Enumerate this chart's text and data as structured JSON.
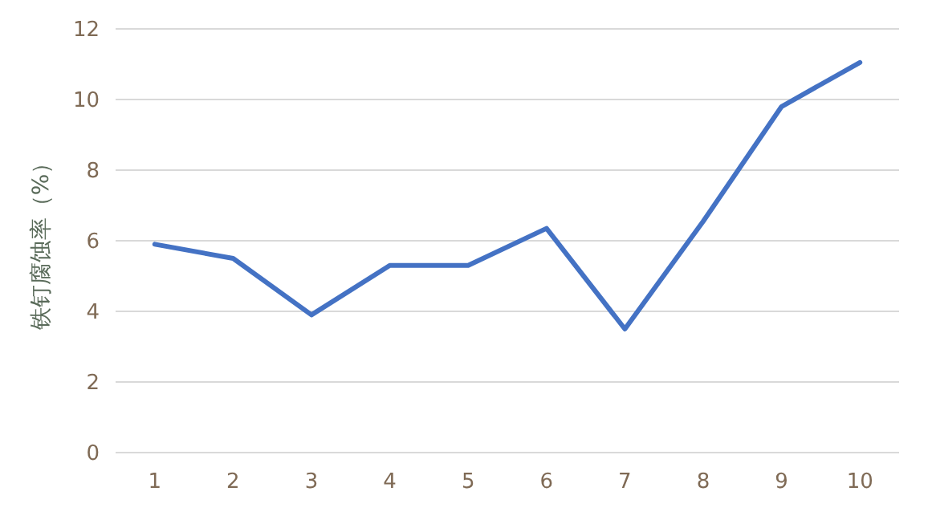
{
  "chart_data": {
    "type": "line",
    "ylabel": "铁钉腐蚀率（%）",
    "categories": [
      "1",
      "2",
      "3",
      "4",
      "5",
      "6",
      "7",
      "8",
      "9",
      "10"
    ],
    "series": [
      {
        "color": "#4472c4",
        "values": [
          5.9,
          5.5,
          3.9,
          5.3,
          5.3,
          6.35,
          3.5,
          6.55,
          9.8,
          11.05
        ]
      }
    ],
    "ylim": [
      0,
      12
    ],
    "yticks": [
      0,
      2,
      4,
      6,
      8,
      10,
      12
    ],
    "grid": "y",
    "marker": "none",
    "line_style": "solid"
  }
}
